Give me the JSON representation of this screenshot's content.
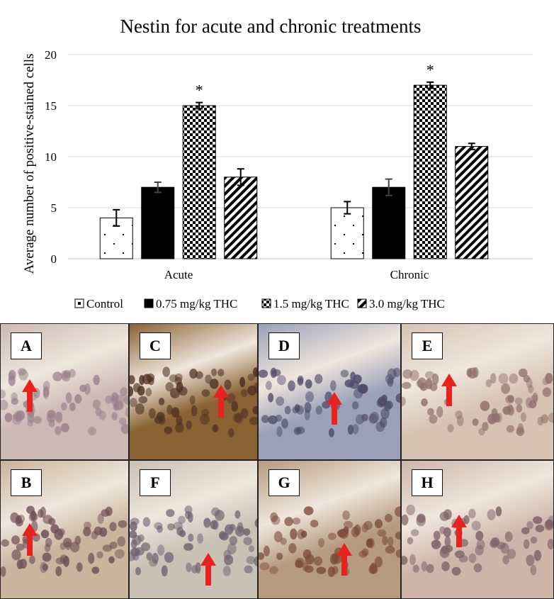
{
  "chart_data": {
    "type": "bar",
    "title": "Nestin for acute and chronic treatments",
    "ylabel": "Average number of positive-stained cells",
    "xlabel": "",
    "ylim": [
      0,
      20
    ],
    "yticks": [
      0,
      5,
      10,
      15,
      20
    ],
    "grid": true,
    "legend_position": "bottom",
    "categories": [
      "Acute",
      "Chronic"
    ],
    "series": [
      {
        "name": "Control",
        "pattern": "dots",
        "values": [
          4,
          5
        ],
        "errors": [
          0.8,
          0.6
        ],
        "significance": [
          "",
          ""
        ]
      },
      {
        "name": "0.75 mg/kg THC",
        "pattern": "solid",
        "values": [
          7,
          7
        ],
        "errors": [
          0.5,
          0.8
        ],
        "significance": [
          "",
          ""
        ]
      },
      {
        "name": "1.5 mg/kg THC",
        "pattern": "checker",
        "values": [
          15,
          17
        ],
        "errors": [
          0.3,
          0.3
        ],
        "significance": [
          "*",
          "*"
        ]
      },
      {
        "name": "3.0 mg/kg THC",
        "pattern": "diagonal",
        "values": [
          8,
          11
        ],
        "errors": [
          0.8,
          0.3
        ],
        "significance": [
          "",
          ""
        ]
      }
    ]
  },
  "panels": [
    {
      "label": "A",
      "tint": "#cbb9b3",
      "cell": "#9a7f8a"
    },
    {
      "label": "C",
      "tint": "#8a6234",
      "cell": "#4e3022"
    },
    {
      "label": "D",
      "tint": "#9aa0b8",
      "cell": "#4d4a68"
    },
    {
      "label": "E",
      "tint": "#d6c3b4",
      "cell": "#8f6f6c"
    },
    {
      "label": "B",
      "tint": "#c9b49c",
      "cell": "#6f4f55"
    },
    {
      "label": "F",
      "tint": "#c9c1b4",
      "cell": "#6f6070"
    },
    {
      "label": "G",
      "tint": "#b59a7f",
      "cell": "#7a4a3a"
    },
    {
      "label": "H",
      "tint": "#cdb6a9",
      "cell": "#7e6168"
    }
  ],
  "colors": {
    "arrow": "#e8231f",
    "bar": "#000000",
    "grid": "#d9d9d9",
    "text": "#000000"
  }
}
